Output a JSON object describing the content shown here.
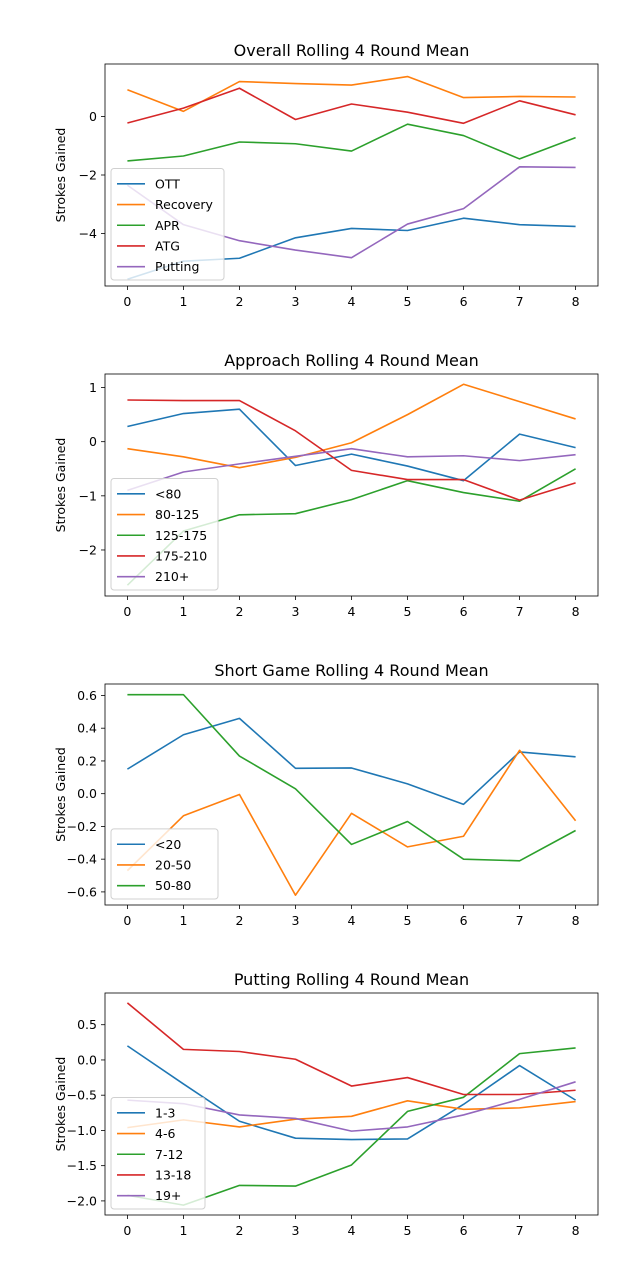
{
  "chart_data": [
    {
      "type": "line",
      "title": "Overall Rolling 4 Round Mean",
      "xlabel": "",
      "ylabel": "Strokes Gained",
      "x": [
        0,
        1,
        2,
        3,
        4,
        5,
        6,
        7,
        8
      ],
      "xlim": [
        -0.4,
        8.4
      ],
      "ylim": [
        -5.8,
        1.8
      ],
      "yticks": [
        0,
        -2,
        -4
      ],
      "ytick_labels": [
        "0",
        "−2",
        "−4"
      ],
      "legend": "lower-left",
      "series": [
        {
          "name": "OTT",
          "color": "#1f77b4",
          "values": [
            -5.57,
            -4.95,
            -4.85,
            -4.15,
            -3.83,
            -3.9,
            -3.48,
            -3.7,
            -3.76
          ]
        },
        {
          "name": "Recovery",
          "color": "#ff7f0e",
          "values": [
            0.92,
            0.18,
            1.2,
            1.13,
            1.08,
            1.37,
            0.65,
            0.69,
            0.67
          ]
        },
        {
          "name": "APR",
          "color": "#2ca02c",
          "values": [
            -1.52,
            -1.35,
            -0.87,
            -0.93,
            -1.18,
            -0.26,
            -0.65,
            -1.45,
            -0.72
          ]
        },
        {
          "name": "ATG",
          "color": "#d62728",
          "values": [
            -0.22,
            0.29,
            0.97,
            -0.1,
            0.43,
            0.15,
            -0.23,
            0.54,
            0.06
          ]
        },
        {
          "name": "Putting",
          "color": "#9467bd",
          "values": [
            -2.35,
            -3.7,
            -4.25,
            -4.57,
            -4.83,
            -3.68,
            -3.15,
            -1.72,
            -1.74
          ]
        }
      ]
    },
    {
      "type": "line",
      "title": "Approach Rolling 4 Round Mean",
      "xlabel": "",
      "ylabel": "Strokes Gained",
      "x": [
        0,
        1,
        2,
        3,
        4,
        5,
        6,
        7,
        8
      ],
      "xlim": [
        -0.4,
        8.4
      ],
      "ylim": [
        -2.85,
        1.25
      ],
      "yticks": [
        1,
        0,
        -1,
        -2
      ],
      "ytick_labels": [
        "1",
        "0",
        "−1",
        "−2"
      ],
      "legend": "lower-left",
      "series": [
        {
          "name": "<80",
          "color": "#1f77b4",
          "values": [
            0.28,
            0.52,
            0.6,
            -0.44,
            -0.23,
            -0.45,
            -0.72,
            0.14,
            -0.11
          ]
        },
        {
          "name": "80-125",
          "color": "#ff7f0e",
          "values": [
            -0.13,
            -0.28,
            -0.48,
            -0.29,
            -0.02,
            0.5,
            1.06,
            0.74,
            0.42
          ]
        },
        {
          "name": "125-175",
          "color": "#2ca02c",
          "values": [
            -2.65,
            -1.65,
            -1.35,
            -1.33,
            -1.07,
            -0.72,
            -0.94,
            -1.1,
            -0.5
          ]
        },
        {
          "name": "175-210",
          "color": "#d62728",
          "values": [
            0.77,
            0.76,
            0.76,
            0.2,
            -0.53,
            -0.7,
            -0.7,
            -1.08,
            -0.76
          ]
        },
        {
          "name": "210+",
          "color": "#9467bd",
          "values": [
            -0.9,
            -0.56,
            -0.41,
            -0.27,
            -0.13,
            -0.28,
            -0.26,
            -0.35,
            -0.24
          ]
        }
      ]
    },
    {
      "type": "line",
      "title": "Short Game Rolling 4 Round Mean",
      "xlabel": "",
      "ylabel": "Strokes Gained",
      "x": [
        0,
        1,
        2,
        3,
        4,
        5,
        6,
        7,
        8
      ],
      "xlim": [
        -0.4,
        8.4
      ],
      "ylim": [
        -0.68,
        0.67
      ],
      "yticks": [
        0.6,
        0.4,
        0.2,
        0.0,
        -0.2,
        -0.4,
        -0.6
      ],
      "ytick_labels": [
        "0.6",
        "0.4",
        "0.2",
        "0.0",
        "−0.2",
        "−0.4",
        "−0.6"
      ],
      "legend": "lower-left",
      "series": [
        {
          "name": "<20",
          "color": "#1f77b4",
          "values": [
            0.15,
            0.36,
            0.46,
            0.155,
            0.157,
            0.06,
            -0.065,
            0.255,
            0.225
          ]
        },
        {
          "name": "20-50",
          "color": "#ff7f0e",
          "values": [
            -0.47,
            -0.135,
            -0.005,
            -0.62,
            -0.12,
            -0.325,
            -0.26,
            0.265,
            -0.165
          ]
        },
        {
          "name": "50-80",
          "color": "#2ca02c",
          "values": [
            0.605,
            0.605,
            0.23,
            0.03,
            -0.31,
            -0.17,
            -0.4,
            -0.41,
            -0.225
          ]
        }
      ]
    },
    {
      "type": "line",
      "title": "Putting Rolling 4 Round Mean",
      "xlabel": "",
      "ylabel": "Strokes Gained",
      "x": [
        0,
        1,
        2,
        3,
        4,
        5,
        6,
        7,
        8
      ],
      "xlim": [
        -0.4,
        8.4
      ],
      "ylim": [
        -2.2,
        0.95
      ],
      "yticks": [
        0.5,
        0.0,
        -0.5,
        -1.0,
        -1.5,
        -2.0
      ],
      "ytick_labels": [
        "0.5",
        "0.0",
        "−0.5",
        "−1.0",
        "−1.5",
        "−2.0"
      ],
      "legend": "lower-left",
      "series": [
        {
          "name": "1-3",
          "color": "#1f77b4",
          "values": [
            0.2,
            -0.34,
            -0.87,
            -1.11,
            -1.13,
            -1.12,
            -0.63,
            -0.08,
            -0.57
          ]
        },
        {
          "name": "4-6",
          "color": "#ff7f0e",
          "values": [
            -0.96,
            -0.85,
            -0.95,
            -0.84,
            -0.8,
            -0.58,
            -0.7,
            -0.68,
            -0.59
          ]
        },
        {
          "name": "7-12",
          "color": "#2ca02c",
          "values": [
            -1.92,
            -2.06,
            -1.78,
            -1.79,
            -1.49,
            -0.73,
            -0.53,
            0.09,
            0.17
          ]
        },
        {
          "name": "13-18",
          "color": "#d62728",
          "values": [
            0.81,
            0.15,
            0.12,
            0.01,
            -0.37,
            -0.25,
            -0.49,
            -0.49,
            -0.43
          ]
        },
        {
          "name": "19+",
          "color": "#9467bd",
          "values": [
            -0.57,
            -0.62,
            -0.78,
            -0.83,
            -1.01,
            -0.95,
            -0.78,
            -0.56,
            -0.31
          ]
        }
      ]
    }
  ]
}
